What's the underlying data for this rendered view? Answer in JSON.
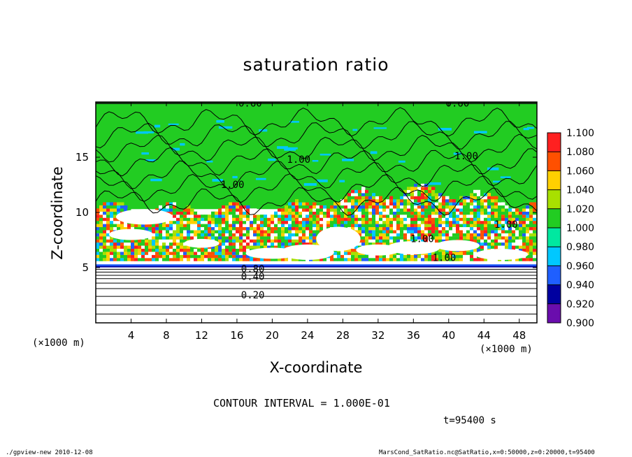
{
  "chart_data": {
    "type": "heatmap",
    "title": "saturation ratio",
    "xlabel": "X-coordinate",
    "ylabel": "Z-coordinate",
    "x_unit_label": "(×1000 m)",
    "xlim": [
      0,
      50
    ],
    "ylim": [
      0,
      20
    ],
    "x_ticks": [
      4,
      8,
      12,
      16,
      20,
      24,
      28,
      32,
      36,
      40,
      44,
      48
    ],
    "y_ticks": [
      5,
      10,
      15
    ],
    "colorbar": {
      "levels": [
        "0.900",
        "0.920",
        "0.940",
        "0.960",
        "0.980",
        "1.000",
        "1.020",
        "1.040",
        "1.060",
        "1.080",
        "1.100"
      ],
      "colors": [
        "#6a0dad",
        "#0000a0",
        "#1f5fff",
        "#00c8ff",
        "#00e8a0",
        "#22cc22",
        "#a8e000",
        "#ffd000",
        "#ff5000",
        "#ff2020",
        "#ff9a9a"
      ]
    },
    "contour_labels": [
      "0.60",
      "0.60",
      "1.00",
      "1.00",
      "1.00",
      "1.00",
      "0.80",
      "0.40",
      "0.20",
      "1.00",
      "1.00"
    ],
    "contour_interval": "CONTOUR INTERVAL = 1.000E-01",
    "time": "t=95400 s"
  },
  "footer": {
    "left": "./gpview-new  2010-12-08",
    "right": "MarsCond_SatRatio.nc@SatRatio,x=0:50000,z=0:20000,t=95400"
  }
}
